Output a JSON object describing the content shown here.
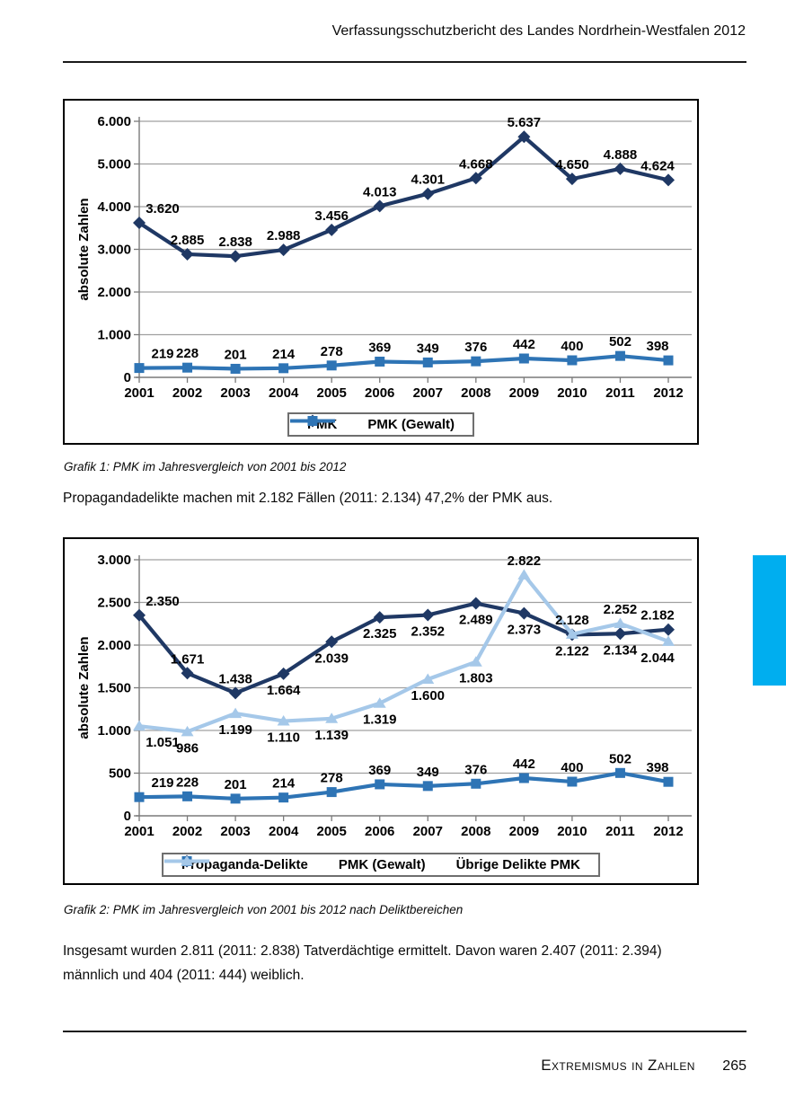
{
  "page": {
    "header_title": "Verfassungsschutzbericht des Landes Nordrhein-Westfalen 2012",
    "footer": {
      "section_label": "Extremismus in Zahlen",
      "page_number": "265"
    }
  },
  "text": {
    "caption1": "Grafik 1: PMK im Jahresvergleich von 2001 bis 2012",
    "para1": "Propagandadelikte machen mit 2.182 Fällen (2011: 2.134) 47,2% der PMK aus.",
    "caption2": "Grafik 2: PMK im Jahresvergleich von 2001 bis 2012 nach Deliktbereichen",
    "para2": "Insgesamt wurden 2.811 (2011: 2.838) Tatverdächtige ermittelt. Davon waren 2.407 (2011: 2.394) männlich und 404 (2011: 444) weiblich."
  },
  "colors": {
    "navy": "#1F3864",
    "blue": "#2E74B5",
    "lightblue": "#A5C8E9",
    "grid": "#A0A0A0",
    "axis": "#7A7A7A",
    "label_text": "#000000",
    "section_tab": "#00AEEF"
  },
  "chart_data": [
    {
      "type": "line",
      "title": "Grafik 1: PMK im Jahresvergleich von 2001 bis 2012",
      "xlabel": "",
      "ylabel": "absolute Zahlen",
      "ylim": [
        0,
        6000
      ],
      "ytick_step": 1000,
      "grid": true,
      "legend_position": "bottom",
      "categories": [
        "2001",
        "2002",
        "2003",
        "2004",
        "2005",
        "2006",
        "2007",
        "2008",
        "2009",
        "2010",
        "2011",
        "2012"
      ],
      "series": [
        {
          "name": "PMK",
          "color": "#1F3864",
          "marker": "diamond",
          "values": [
            3620,
            2885,
            2838,
            2988,
            3456,
            4013,
            4301,
            4668,
            5637,
            4650,
            4888,
            4624
          ]
        },
        {
          "name": "PMK (Gewalt)",
          "color": "#2E74B5",
          "marker": "square",
          "values": [
            219,
            228,
            201,
            214,
            278,
            369,
            349,
            376,
            442,
            400,
            502,
            398
          ]
        }
      ]
    },
    {
      "type": "line",
      "title": "Grafik 2: PMK im Jahresvergleich von 2001 bis 2012 nach Deliktbereichen",
      "xlabel": "",
      "ylabel": "absolute Zahlen",
      "ylim": [
        0,
        3000
      ],
      "ytick_step": 500,
      "grid": true,
      "legend_position": "bottom",
      "categories": [
        "2001",
        "2002",
        "2003",
        "2004",
        "2005",
        "2006",
        "2007",
        "2008",
        "2009",
        "2010",
        "2011",
        "2012"
      ],
      "series": [
        {
          "name": "Propaganda-Delikte",
          "color": "#1F3864",
          "marker": "diamond",
          "values": [
            2350,
            1671,
            1438,
            1664,
            2039,
            2325,
            2352,
            2489,
            2373,
            2122,
            2134,
            2182
          ],
          "label_pos": [
            "above",
            "above",
            "above",
            "below",
            "below",
            "below",
            "below",
            "below",
            "below",
            "below",
            "below",
            "above"
          ]
        },
        {
          "name": "PMK (Gewalt)",
          "color": "#2E74B5",
          "marker": "square",
          "values": [
            219,
            228,
            201,
            214,
            278,
            369,
            349,
            376,
            442,
            400,
            502,
            398
          ]
        },
        {
          "name": "Übrige Delikte PMK",
          "color": "#A5C8E9",
          "marker": "triangle",
          "values": [
            1051,
            986,
            1199,
            1110,
            1139,
            1319,
            1600,
            1803,
            2822,
            2128,
            2252,
            2044
          ],
          "label_pos": [
            "below",
            "below",
            "below",
            "below",
            "below",
            "below",
            "below",
            "below",
            "above",
            "above",
            "above",
            "below"
          ]
        }
      ]
    }
  ]
}
